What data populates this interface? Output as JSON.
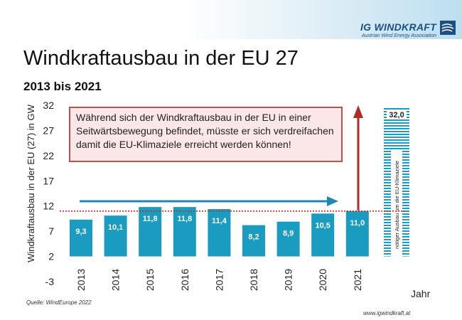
{
  "header": {
    "brand_name": "IG WINDKRAFT",
    "brand_sub": "Austrian Wind Energy Association",
    "logo_icon": "wind-logo-icon"
  },
  "title": "Windkraftausbau in der EU 27",
  "subtitle": "2013 bis 2021",
  "callout": "Während sich der Windkraftausbau in der EU in einer Seitwärtsbewegung befindet, müsste er sich verdreifachen damit die EU-Klimaziele erreicht werden können!",
  "source": "Quelle: WindEurope 2022",
  "url": "www.igwindkraft.at",
  "chart_data": {
    "type": "bar",
    "categories": [
      "2013",
      "2014",
      "2015",
      "2016",
      "2017",
      "2018",
      "2019",
      "2020",
      "2021"
    ],
    "values": [
      9.3,
      10.1,
      11.8,
      11.8,
      11.4,
      8.2,
      8.9,
      10.5,
      11.0
    ],
    "value_labels": [
      "9,3",
      "10,1",
      "11,8",
      "11,8",
      "11,4",
      "8,2",
      "8,9",
      "10,5",
      "11,0"
    ],
    "target": {
      "value": 32.0,
      "value_label": "32,0",
      "label": "nötiger Ausbau um die EU-Klimaziele"
    },
    "ylabel": "Windkraftausbau in der EU (27) in GW",
    "xlabel": "Jahr",
    "yticks": [
      32,
      27,
      22,
      17,
      12,
      7,
      2,
      -3
    ],
    "ylim": [
      -3,
      32
    ],
    "reference_line": 11,
    "grid": false,
    "colors": {
      "bar": "#1a9bc0",
      "target_hatch": "#1a9bc0",
      "reference_line": "#e02020",
      "arrow_horizontal": "#1f86b8",
      "arrow_vertical": "#b02b2b"
    }
  }
}
